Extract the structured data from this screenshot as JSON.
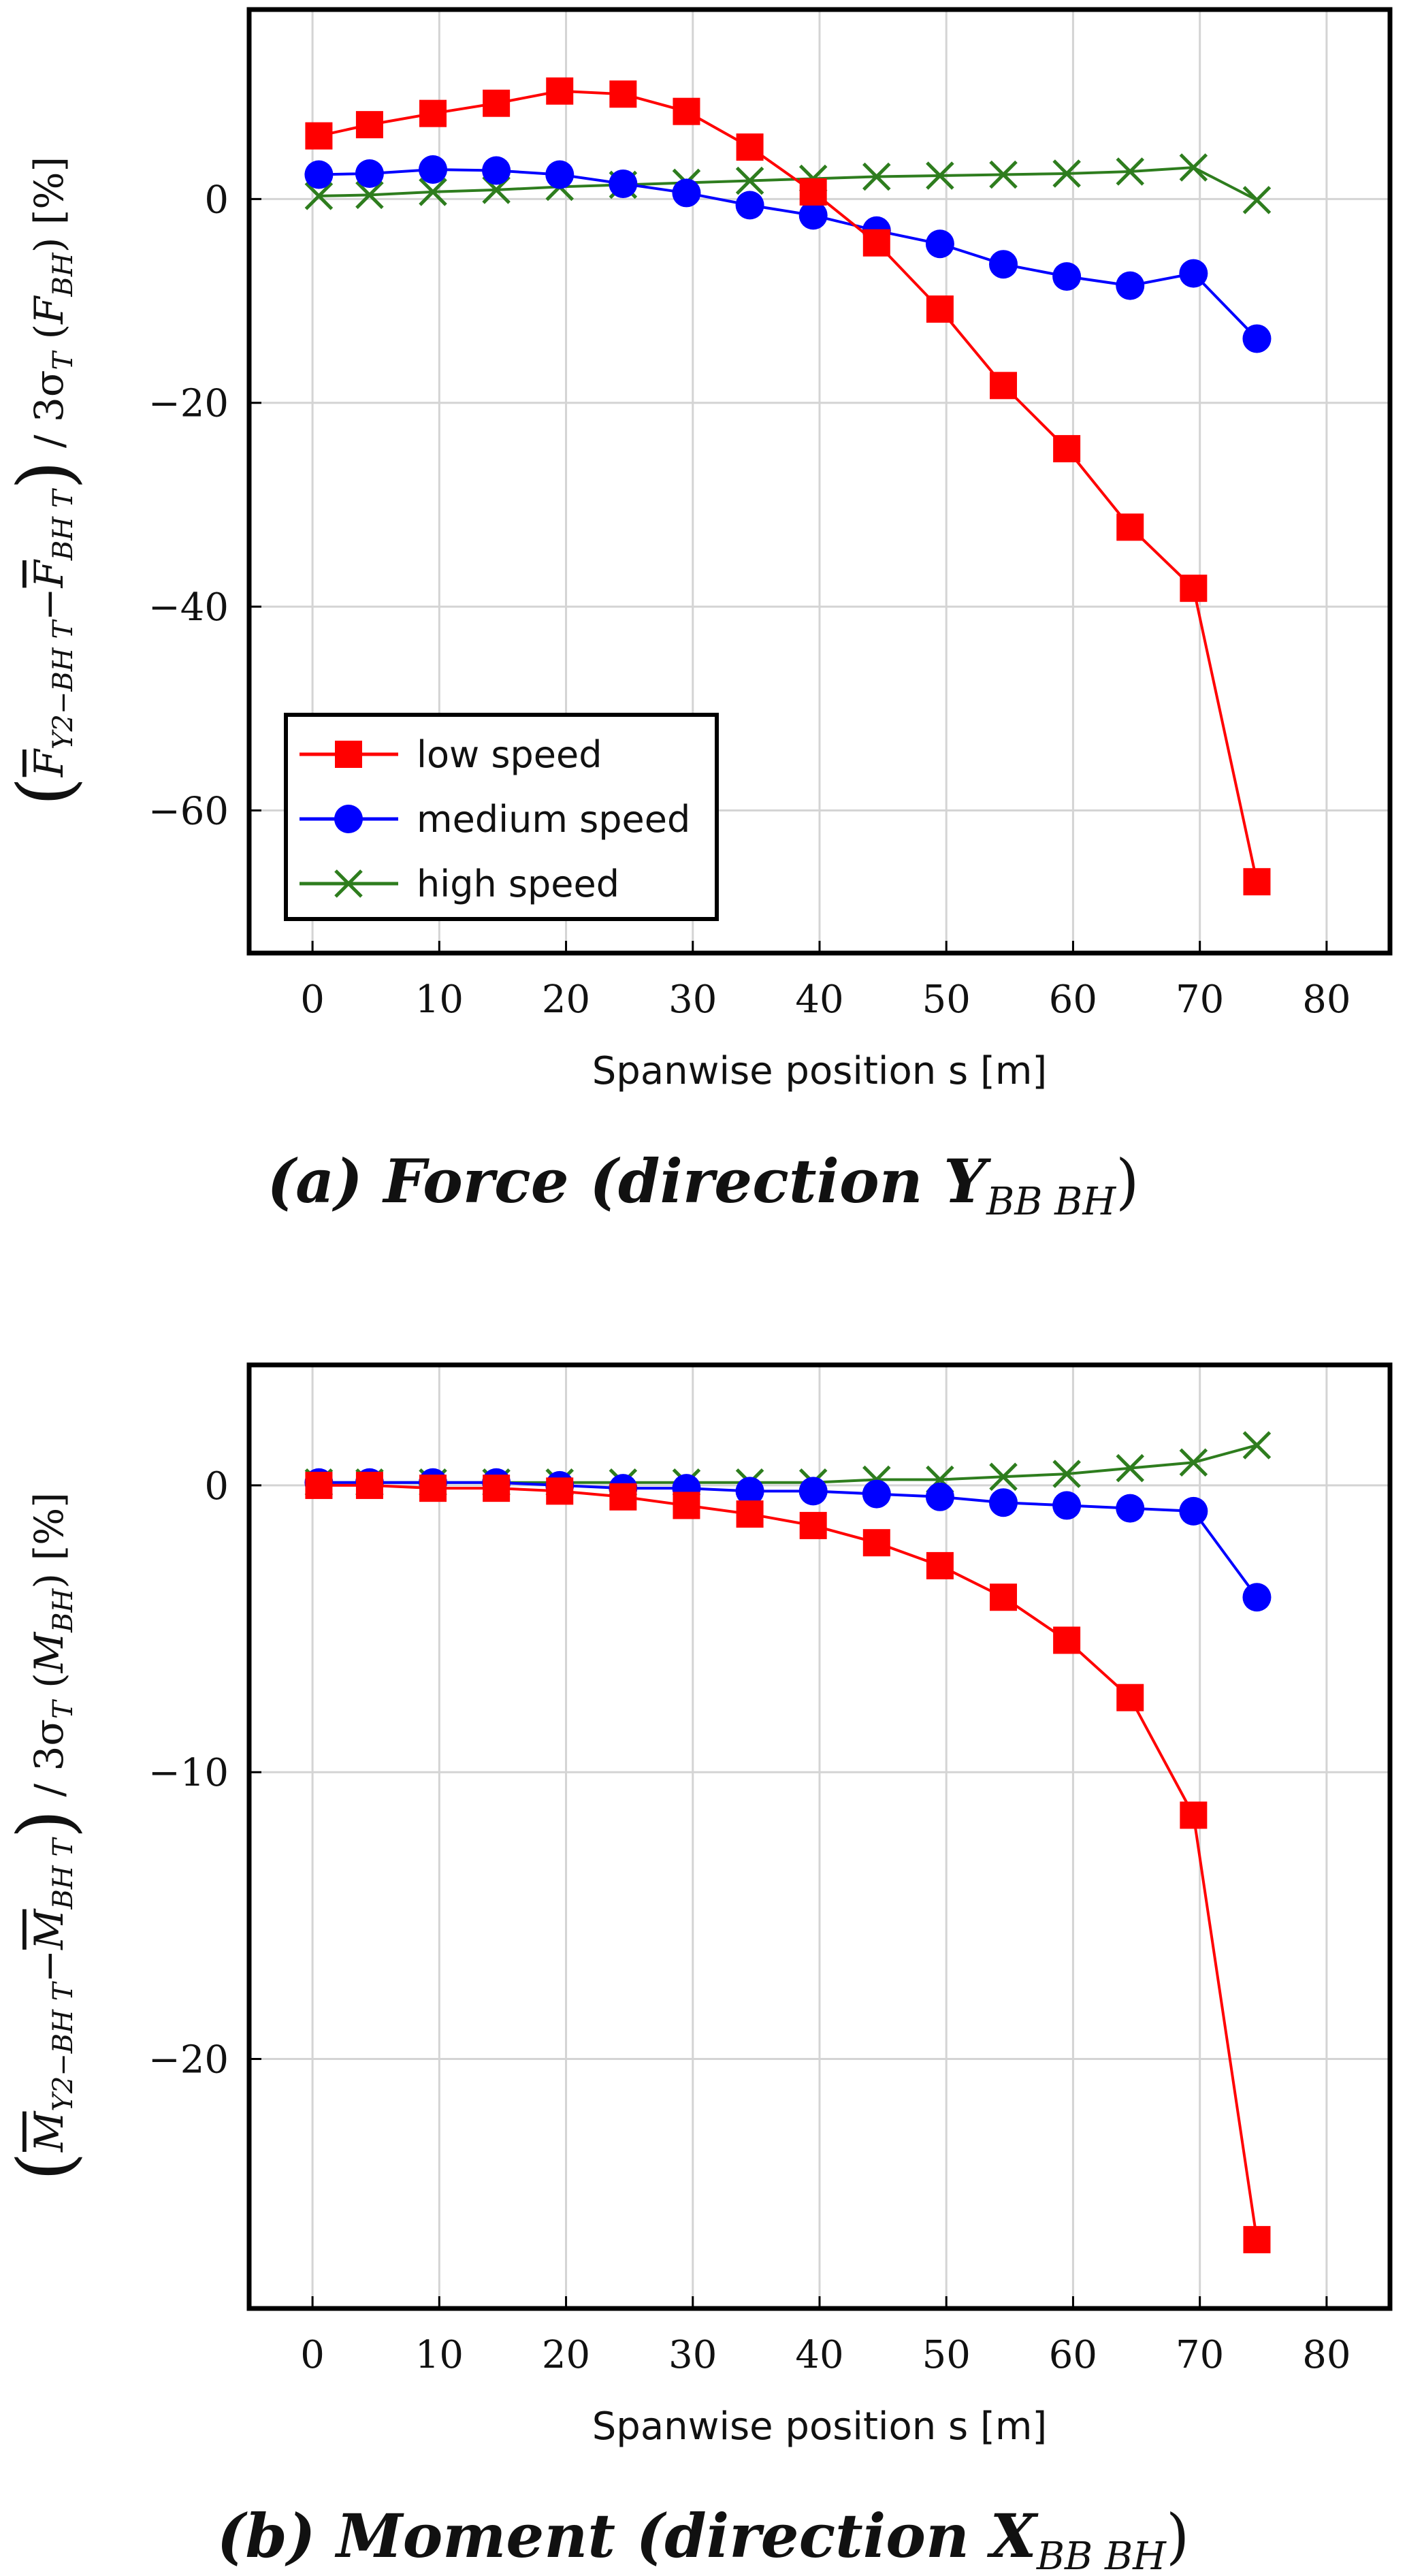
{
  "chart_data": [
    {
      "type": "line",
      "caption": "(a) Force  (direction Y",
      "caption_sub": "BB BH",
      "caption_close": ")",
      "ylabel": "(F̄Y2−BH T − F̄BH T) / 3σT (FBH) [%]",
      "ylabel_parts": {
        "open": "(",
        "num1": "F",
        "sub1": "Y2−BH T",
        "minus": "−",
        "num2": "F",
        "sub2": "BH T",
        "close": ")",
        "div": " / 3σ",
        "sigma_sub": "T",
        "paren_open": " (",
        "f": "F",
        "f_sub": "BH",
        "paren_close": ")",
        "unit": " [%]"
      },
      "xlabel": "Spanwise position s [m]",
      "xlim": [
        -5,
        85
      ],
      "ylim": [
        -74,
        18.6
      ],
      "xticks": [
        0,
        10,
        20,
        30,
        40,
        50,
        60,
        70,
        80
      ],
      "yticks": [
        0,
        -20,
        -40,
        -60
      ],
      "ytick_labels": [
        "0",
        "−20",
        "−40",
        "−60"
      ],
      "x": [
        0.5,
        4.5,
        9.5,
        14.5,
        19.5,
        24.5,
        29.5,
        34.5,
        39.5,
        44.5,
        49.5,
        54.5,
        59.5,
        64.5,
        69.5,
        74.5
      ],
      "series": [
        {
          "name": "low speed",
          "color": "#ff0000",
          "marker": "square",
          "values": [
            6.2,
            7.3,
            8.4,
            9.4,
            10.6,
            10.3,
            8.6,
            5.1,
            0.7,
            -4.3,
            -10.8,
            -18.3,
            -24.5,
            -32.2,
            -38.2,
            -67.0
          ]
        },
        {
          "name": "medium speed",
          "color": "#0000ff",
          "marker": "circle",
          "values": [
            2.4,
            2.5,
            2.9,
            2.8,
            2.4,
            1.5,
            0.6,
            -0.6,
            -1.6,
            -3.1,
            -4.4,
            -6.4,
            -7.6,
            -8.5,
            -7.3,
            -13.7
          ]
        },
        {
          "name": "high speed",
          "color": "#2e7d1e",
          "marker": "x",
          "values": [
            0.3,
            0.4,
            0.7,
            0.9,
            1.2,
            1.4,
            1.6,
            1.8,
            2.0,
            2.2,
            2.3,
            2.4,
            2.5,
            2.7,
            3.1,
            -0.1
          ]
        }
      ],
      "legend": {
        "placement": "bottom-left",
        "entries": [
          "low speed",
          "medium speed",
          "high speed"
        ]
      },
      "grid": true
    },
    {
      "type": "line",
      "caption": "(b) Moment (direction X",
      "caption_sub": "BB BH",
      "caption_close": ")",
      "ylabel": "(M̄Y2−BH T − M̄BH T) / 3σT (MBH) [%]",
      "ylabel_parts": {
        "open": "(",
        "num1": "M",
        "sub1": "Y2−BH T",
        "minus": "−",
        "num2": "M",
        "sub2": "BH T",
        "close": ")",
        "div": " / 3σ",
        "sigma_sub": "T",
        "paren_open": " (",
        "f": "M",
        "f_sub": "BH",
        "paren_close": ")",
        "unit": " [%]"
      },
      "xlabel": "Spanwise position s [m]",
      "xlim": [
        -5,
        85
      ],
      "ylim": [
        -28.7,
        4.2
      ],
      "xticks": [
        0,
        10,
        20,
        30,
        40,
        50,
        60,
        70,
        80
      ],
      "yticks": [
        0,
        -10,
        -20
      ],
      "ytick_labels": [
        "0",
        "−10",
        "−20"
      ],
      "x": [
        0.5,
        4.5,
        9.5,
        14.5,
        19.5,
        24.5,
        29.5,
        34.5,
        39.5,
        44.5,
        49.5,
        54.5,
        59.5,
        64.5,
        69.5,
        74.5
      ],
      "series": [
        {
          "name": "low speed",
          "color": "#ff0000",
          "marker": "square",
          "values": [
            0.0,
            0.0,
            -0.1,
            -0.1,
            -0.2,
            -0.4,
            -0.7,
            -1.0,
            -1.4,
            -2.0,
            -2.8,
            -3.9,
            -5.4,
            -7.4,
            -11.5,
            -26.3
          ]
        },
        {
          "name": "medium speed",
          "color": "#0000ff",
          "marker": "circle",
          "values": [
            0.1,
            0.1,
            0.1,
            0.1,
            0.0,
            -0.1,
            -0.1,
            -0.2,
            -0.2,
            -0.3,
            -0.4,
            -0.6,
            -0.7,
            -0.8,
            -0.9,
            -3.9
          ]
        },
        {
          "name": "high speed",
          "color": "#2e7d1e",
          "marker": "x",
          "values": [
            0.1,
            0.1,
            0.1,
            0.1,
            0.1,
            0.1,
            0.1,
            0.1,
            0.1,
            0.2,
            0.2,
            0.3,
            0.4,
            0.6,
            0.8,
            1.4
          ]
        }
      ],
      "grid": true
    }
  ]
}
